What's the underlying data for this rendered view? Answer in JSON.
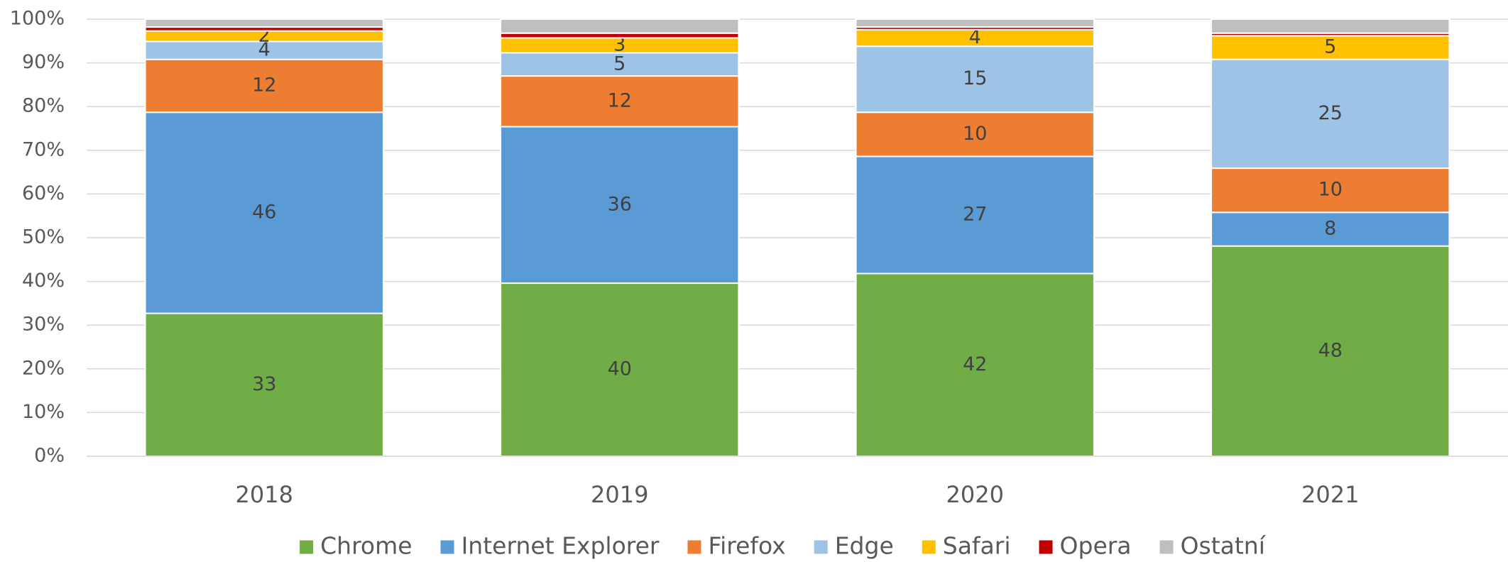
{
  "chart_data": {
    "type": "stacked_bar",
    "categories": [
      "2018",
      "2019",
      "2020",
      "2021"
    ],
    "series": [
      {
        "name": "Chrome",
        "color": "#70ad47",
        "values": [
          32.7,
          39.6,
          41.8,
          48.1
        ],
        "value_labels": [
          "33",
          "40",
          "42",
          "48"
        ]
      },
      {
        "name": "Internet Explorer",
        "color": "#5b9bd5",
        "values": [
          46.0,
          35.8,
          26.8,
          7.7
        ],
        "value_labels": [
          "46",
          "36",
          "27",
          "8"
        ]
      },
      {
        "name": "Firefox",
        "color": "#ed7d31",
        "values": [
          12.1,
          11.6,
          10.1,
          10.1
        ],
        "value_labels": [
          "12",
          "12",
          "10",
          "10"
        ]
      },
      {
        "name": "Edge",
        "color": "#9dc3e6",
        "values": [
          4.1,
          5.3,
          15.1,
          24.9
        ],
        "value_labels": [
          "4",
          "5",
          "15",
          "25"
        ]
      },
      {
        "name": "Safari",
        "color": "#ffc000",
        "values": [
          2.4,
          3.4,
          3.8,
          5.4
        ],
        "value_labels": [
          "2",
          "3",
          "4",
          "5"
        ]
      },
      {
        "name": "Opera",
        "color": "#c00000",
        "values": [
          0.9,
          1.1,
          0.6,
          0.6
        ],
        "value_labels": [
          null,
          null,
          null,
          null
        ]
      },
      {
        "name": "Ostatní",
        "color": "#bfbfbf",
        "values": [
          1.8,
          3.2,
          1.8,
          3.2
        ],
        "value_labels": [
          null,
          null,
          null,
          null
        ]
      }
    ],
    "ylim": [
      0,
      100
    ],
    "yticks": [
      {
        "value": 0,
        "label": "0%"
      },
      {
        "value": 10,
        "label": "10%"
      },
      {
        "value": 20,
        "label": "20%"
      },
      {
        "value": 30,
        "label": "30%"
      },
      {
        "value": 40,
        "label": "40%"
      },
      {
        "value": 50,
        "label": "50%"
      },
      {
        "value": 60,
        "label": "60%"
      },
      {
        "value": 70,
        "label": "70%"
      },
      {
        "value": 80,
        "label": "80%"
      },
      {
        "value": 90,
        "label": "90%"
      },
      {
        "value": 100,
        "label": "100%"
      }
    ],
    "grid": true,
    "legend": "bottom"
  }
}
